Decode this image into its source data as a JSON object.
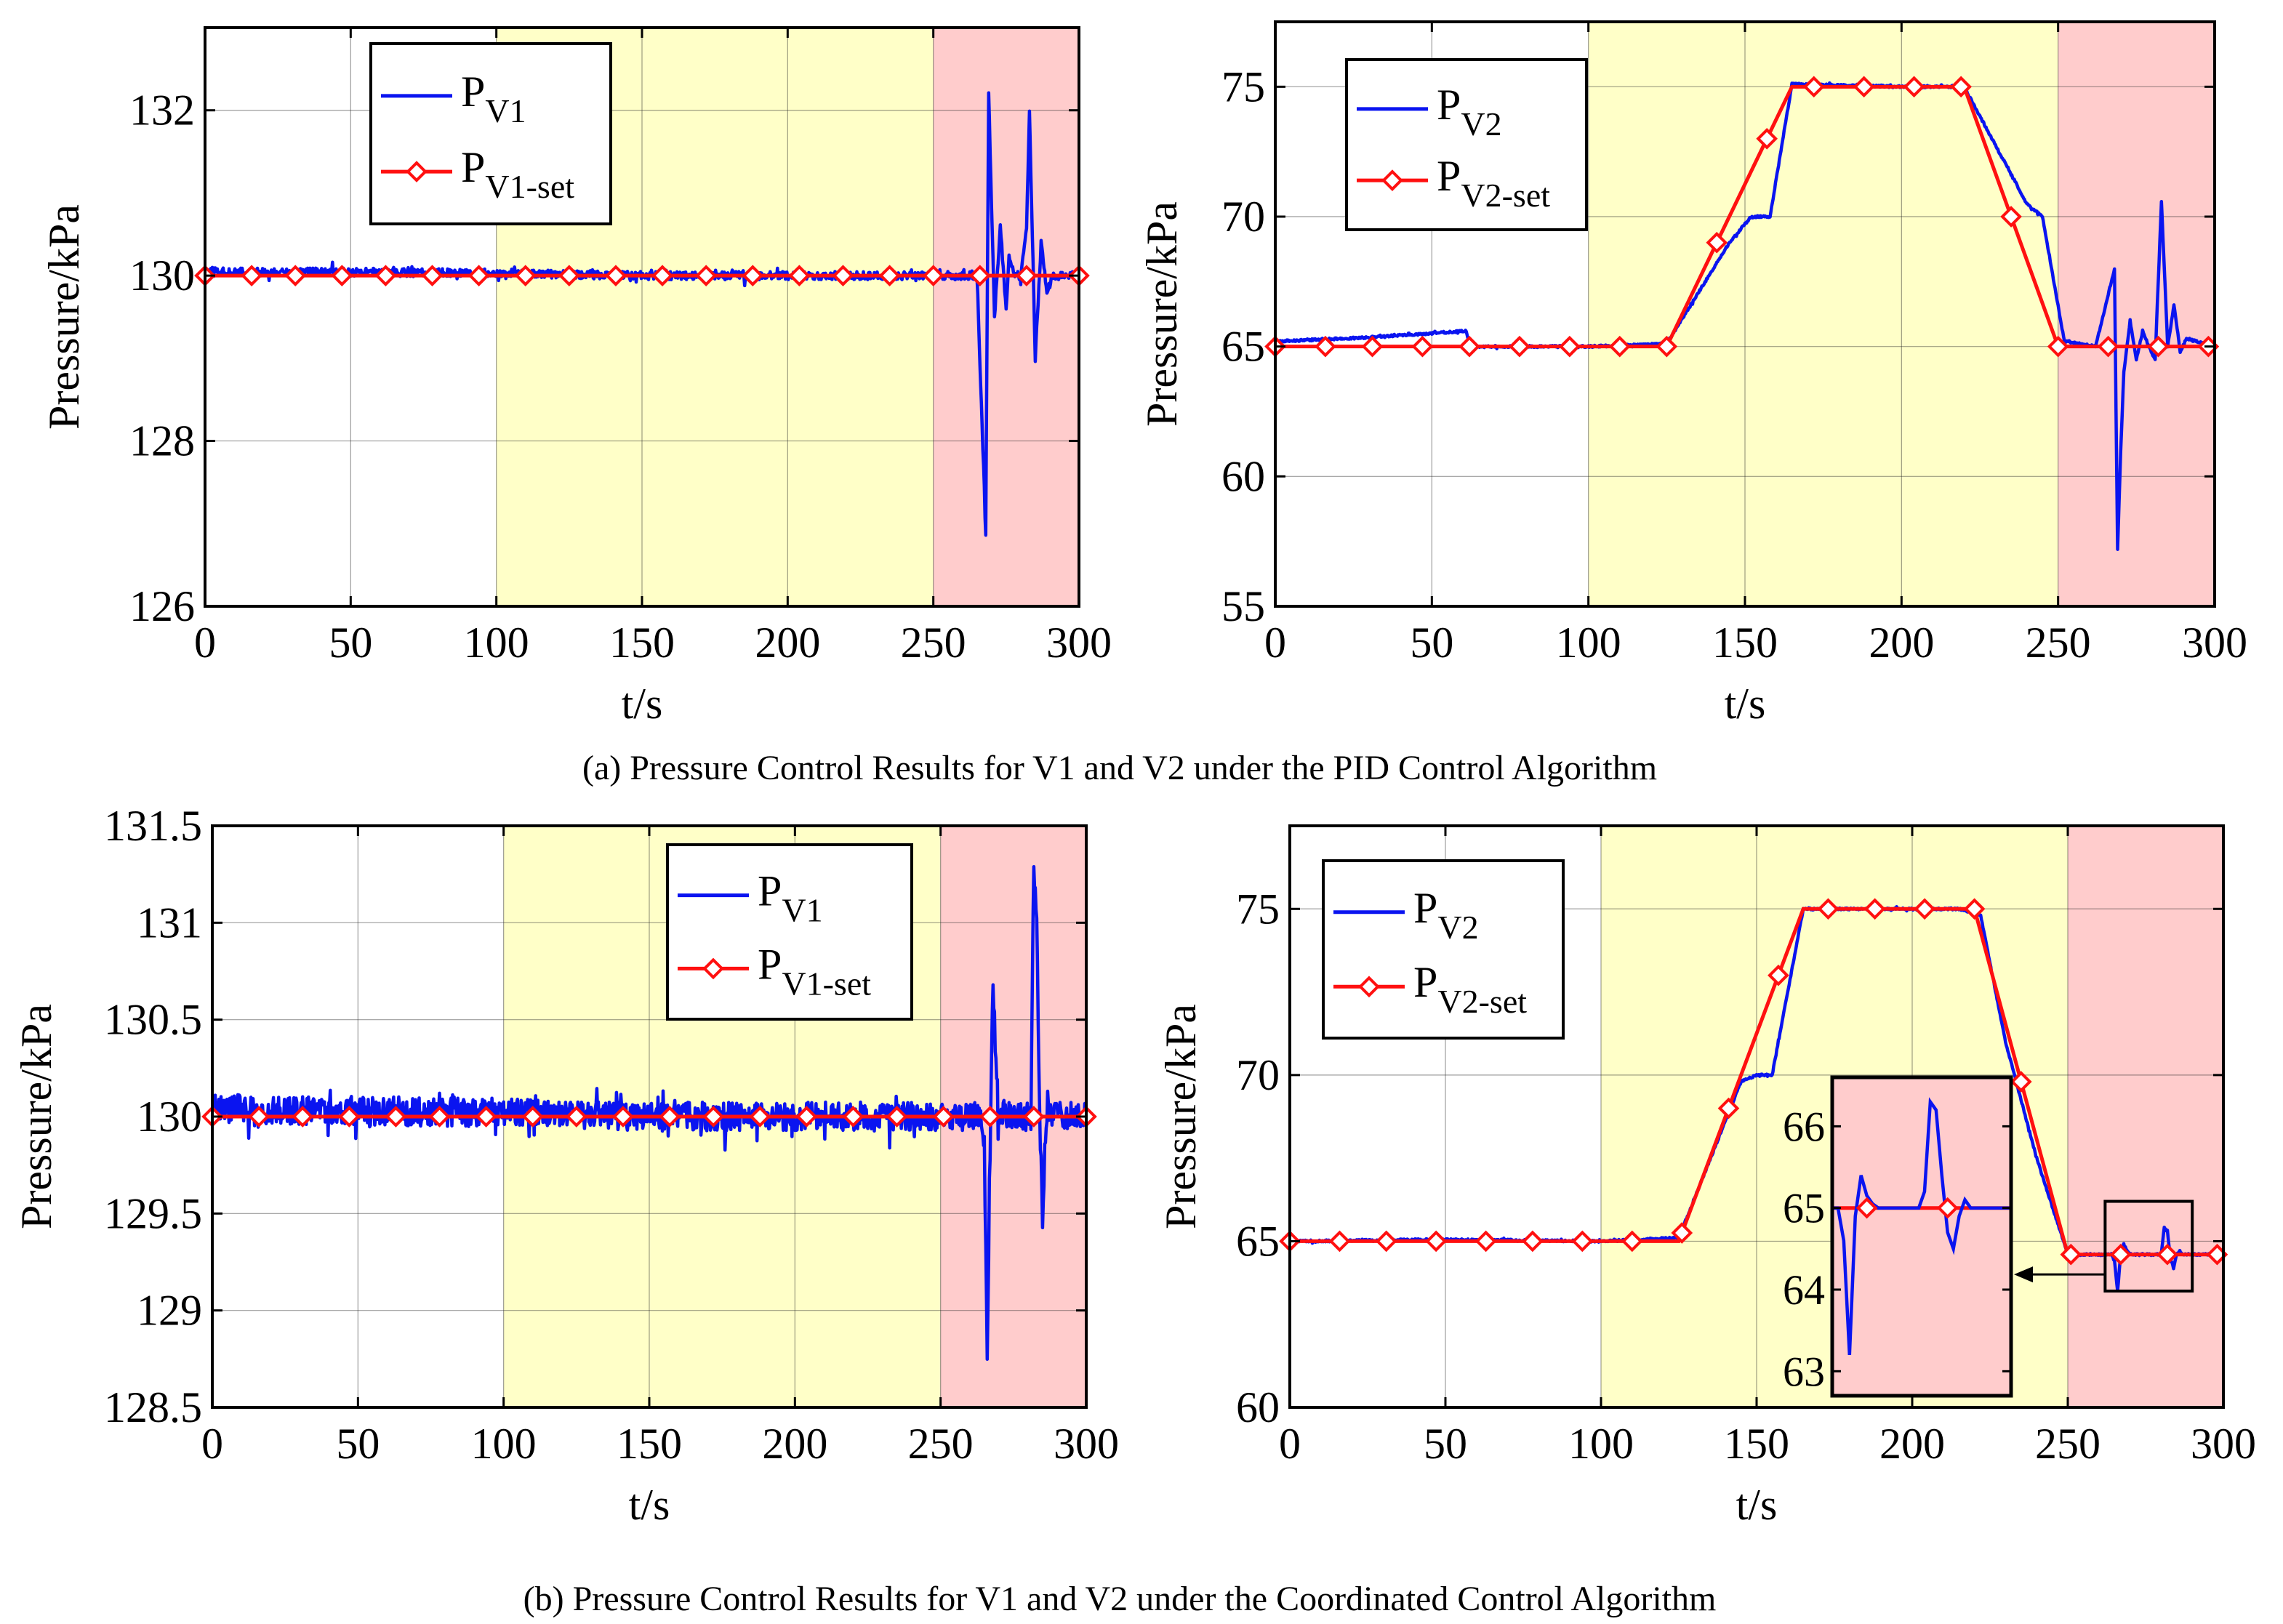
{
  "figure": {
    "caption_a": "(a) Pressure Control Results for V1 and V2 under the PID Control Algorithm",
    "caption_b": "(b) Pressure Control Results for V1 and V2 under the Coordinated Control Algorithm"
  },
  "colors": {
    "measured": "#0a14f0",
    "setpoint": "#ff1010",
    "region_yellow": "#ffffc8",
    "region_red": "#ffcccc",
    "grid": "#262626",
    "axis": "#000000"
  },
  "chart_data": [
    {
      "id": "a1",
      "type": "line",
      "title": "",
      "xlabel": "t/s",
      "ylabel": "Pressure/kPa",
      "xlim": [
        0,
        300
      ],
      "ylim": [
        126,
        133
      ],
      "xticks": [
        0,
        50,
        100,
        150,
        200,
        250,
        300
      ],
      "yticks": [
        126,
        128,
        130,
        132
      ],
      "ytick_labels": [
        "126",
        "128",
        "130",
        "132"
      ],
      "grid": true,
      "legend_position": "top-center",
      "shaded_regions": [
        {
          "from": 100,
          "to": 250,
          "color": "yellow"
        },
        {
          "from": 250,
          "to": 300,
          "color": "red"
        }
      ],
      "series": [
        {
          "name": "P",
          "subscript": "V1",
          "style": "measured-noisy",
          "noise": 0.05,
          "x": [
            0,
            100,
            150,
            250,
            265,
            268,
            269,
            271,
            273,
            275,
            276,
            278,
            280,
            282,
            283,
            285,
            287,
            289,
            291,
            300
          ],
          "y": [
            130.05,
            130.03,
            130.0,
            130.0,
            130.0,
            126.9,
            132.2,
            129.5,
            130.6,
            129.6,
            130.2,
            130.0,
            130.0,
            130.6,
            132.0,
            129.0,
            130.4,
            129.8,
            130.0,
            130.0
          ]
        },
        {
          "name": "P",
          "subscript": "V1-set",
          "style": "setpoint",
          "x": [
            0,
            300
          ],
          "y": [
            130,
            130
          ],
          "marker_x": [
            0,
            16,
            31,
            47,
            62,
            78,
            94,
            110,
            125,
            141,
            157,
            172,
            188,
            204,
            219,
            235,
            250,
            266,
            282,
            300
          ]
        }
      ]
    },
    {
      "id": "a2",
      "type": "line",
      "title": "",
      "xlabel": "t/s",
      "ylabel": "Pressure/kPa",
      "xlim": [
        0,
        300
      ],
      "ylim": [
        55,
        77.5
      ],
      "xticks": [
        0,
        50,
        100,
        150,
        200,
        250,
        300
      ],
      "yticks": [
        55,
        60,
        65,
        70,
        75
      ],
      "ytick_labels": [
        "55",
        "60",
        "65",
        "70",
        "75"
      ],
      "grid": true,
      "legend_position": "top-left",
      "shaded_regions": [
        {
          "from": 100,
          "to": 250,
          "color": "yellow"
        },
        {
          "from": 250,
          "to": 300,
          "color": "red"
        }
      ],
      "series": [
        {
          "name": "P",
          "subscript": "V2",
          "style": "measured",
          "noise": 0.04,
          "x": [
            0,
            30,
            61,
            62,
            100,
            125,
            145,
            152,
            158,
            165,
            200,
            220,
            240,
            245,
            252,
            262,
            268,
            269,
            270,
            271,
            273,
            275,
            277,
            279,
            281,
            283,
            285,
            287,
            289,
            291,
            300
          ],
          "y": [
            65.2,
            65.35,
            65.6,
            65.0,
            65.0,
            65.1,
            69.0,
            70.0,
            70.0,
            75.1,
            75.0,
            75.0,
            70.5,
            70.0,
            65.2,
            65.0,
            68.0,
            57.2,
            61.0,
            64.0,
            66.0,
            64.5,
            65.6,
            65.0,
            64.5,
            70.6,
            65.0,
            66.6,
            64.8,
            65.3,
            65.0
          ]
        },
        {
          "name": "P",
          "subscript": "V2-set",
          "style": "setpoint",
          "x": [
            0,
            125,
            165,
            220,
            250,
            300
          ],
          "y": [
            65,
            65,
            75,
            75,
            65,
            65
          ],
          "marker_x": [
            0,
            16,
            31,
            47,
            62,
            78,
            94,
            110,
            125,
            141,
            157,
            172,
            188,
            204,
            219,
            235,
            250,
            266,
            282,
            298
          ]
        }
      ]
    },
    {
      "id": "b1",
      "type": "line",
      "title": "",
      "xlabel": "t/s",
      "ylabel": "Pressure/kPa",
      "xlim": [
        0,
        300
      ],
      "ylim": [
        128.5,
        131.5
      ],
      "xticks": [
        0,
        50,
        100,
        150,
        200,
        250,
        300
      ],
      "yticks": [
        128.5,
        129,
        129.5,
        130,
        130.5,
        131,
        131.5
      ],
      "ytick_labels": [
        "128.5",
        "129",
        "129.5",
        "130",
        "130.5",
        "131",
        "131.5"
      ],
      "grid": true,
      "legend_position": "top-right",
      "shaded_regions": [
        {
          "from": 100,
          "to": 250,
          "color": "yellow"
        },
        {
          "from": 250,
          "to": 300,
          "color": "red"
        }
      ],
      "series": [
        {
          "name": "P",
          "subscript": "V1",
          "style": "measured-noisy",
          "noise": 0.075,
          "x": [
            0,
            100,
            150,
            250,
            264,
            265,
            266,
            267,
            268,
            269,
            270,
            271,
            272,
            281,
            282,
            283,
            284,
            285,
            286,
            287,
            288,
            300
          ],
          "y": [
            130.04,
            130.02,
            130.0,
            130.0,
            130.0,
            129.9,
            128.75,
            129.9,
            130.72,
            130.3,
            129.95,
            130.05,
            130.0,
            130.0,
            131.32,
            131.0,
            130.0,
            129.45,
            129.9,
            130.05,
            130.0,
            130.0
          ]
        },
        {
          "name": "P",
          "subscript": "V1-set",
          "style": "setpoint",
          "x": [
            0,
            300
          ],
          "y": [
            130,
            130
          ],
          "marker_x": [
            0,
            16,
            31,
            47,
            63,
            78,
            94,
            110,
            125,
            141,
            157,
            172,
            188,
            204,
            220,
            235,
            251,
            267,
            282,
            300
          ]
        }
      ]
    },
    {
      "id": "b2",
      "type": "line",
      "title": "",
      "xlabel": "t/s",
      "ylabel": "Pressure/kPa",
      "xlim": [
        0,
        300
      ],
      "ylim": [
        60,
        77.5
      ],
      "xticks": [
        0,
        50,
        100,
        150,
        200,
        250,
        300
      ],
      "yticks": [
        60,
        65,
        70,
        75
      ],
      "ytick_labels": [
        "60",
        "65",
        "70",
        "75"
      ],
      "grid": true,
      "legend_position": "top-left",
      "shaded_regions": [
        {
          "from": 100,
          "to": 250,
          "color": "yellow"
        },
        {
          "from": 250,
          "to": 300,
          "color": "red"
        }
      ],
      "series": [
        {
          "name": "P",
          "subscript": "V2",
          "style": "measured",
          "noise": 0.03,
          "x": [
            0,
            50,
            100,
            125,
            145,
            150,
            155,
            165,
            215,
            222,
            230,
            240,
            250,
            264,
            265,
            266,
            267,
            268,
            269,
            270,
            280,
            281,
            282,
            283,
            284,
            285,
            286,
            287,
            300
          ],
          "y": [
            65.0,
            65.05,
            65.0,
            65.1,
            69.8,
            70.0,
            70.0,
            75.0,
            75.0,
            74.8,
            71.0,
            67.5,
            64.6,
            64.6,
            64.4,
            63.5,
            64.6,
            64.9,
            64.7,
            64.6,
            64.6,
            65.4,
            65.3,
            64.5,
            64.2,
            64.6,
            64.7,
            64.6,
            64.6
          ]
        },
        {
          "name": "P",
          "subscript": "V2-set",
          "style": "setpoint",
          "x": [
            0,
            125,
            165,
            220,
            250,
            300
          ],
          "y": [
            65,
            65,
            75,
            75,
            64.6,
            64.6
          ],
          "marker_x": [
            0,
            16,
            31,
            47,
            63,
            78,
            94,
            110,
            126,
            141,
            157,
            173,
            188,
            204,
            220,
            235,
            251,
            267,
            282,
            298
          ]
        }
      ],
      "inset": {
        "region": {
          "x": [
            262,
            290
          ],
          "y": [
            63.5,
            66.2
          ]
        },
        "yticks": [
          63,
          64,
          65,
          66
        ],
        "ytick_labels": [
          "63",
          "64",
          "65",
          "66"
        ],
        "ylim": [
          62.7,
          66.6
        ],
        "measured_x": [
          0,
          1,
          2,
          3,
          4,
          5,
          6,
          7,
          8,
          9,
          11,
          12,
          13,
          14,
          15,
          16,
          17,
          18,
          19,
          20,
          21,
          22,
          23,
          24,
          26,
          28,
          30,
          31
        ],
        "measured_y": [
          65.0,
          65.0,
          64.6,
          63.2,
          64.9,
          65.4,
          65.15,
          65.05,
          65.0,
          65.0,
          65.0,
          65.0,
          65.0,
          65.0,
          65.0,
          65.2,
          66.3,
          66.2,
          65.4,
          64.7,
          64.5,
          64.9,
          65.1,
          65.0,
          65.0,
          65.0,
          65.0,
          65.0
        ],
        "setpoint_y": 65.0,
        "marker_x": [
          6,
          20
        ]
      }
    }
  ]
}
